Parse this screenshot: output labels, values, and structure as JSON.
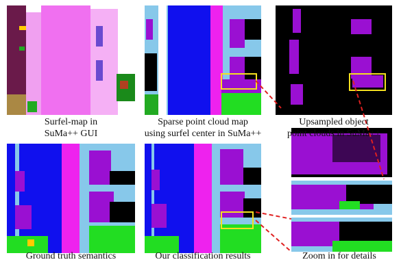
{
  "figure": {
    "panels": [
      {
        "id": "surfel-map",
        "caption": [
          "Surfel-map in",
          "SuMa++ GUI"
        ]
      },
      {
        "id": "sparse-map",
        "caption": [
          "Sparse point cloud map",
          "using surfel center in SuMa++"
        ]
      },
      {
        "id": "upsampled",
        "caption": [
          "Upsampled object",
          "point clouds in SuMa++"
        ]
      },
      {
        "id": "ground-truth",
        "caption": [
          "Ground truth semantics"
        ]
      },
      {
        "id": "classification",
        "caption": [
          "Our classification  results"
        ]
      },
      {
        "id": "zoom",
        "caption": [
          "Zoom in for details"
        ]
      }
    ]
  },
  "colors": {
    "sky_light": "#87c8ea",
    "road_blue": "#1010ee",
    "magenta": "#ee22ee",
    "purple": "#9a10d2",
    "pink_surfel": "#f070f0",
    "green": "#22dd22",
    "black": "#000000",
    "highlight_box": "#f5e020",
    "connector": "#e02020"
  }
}
